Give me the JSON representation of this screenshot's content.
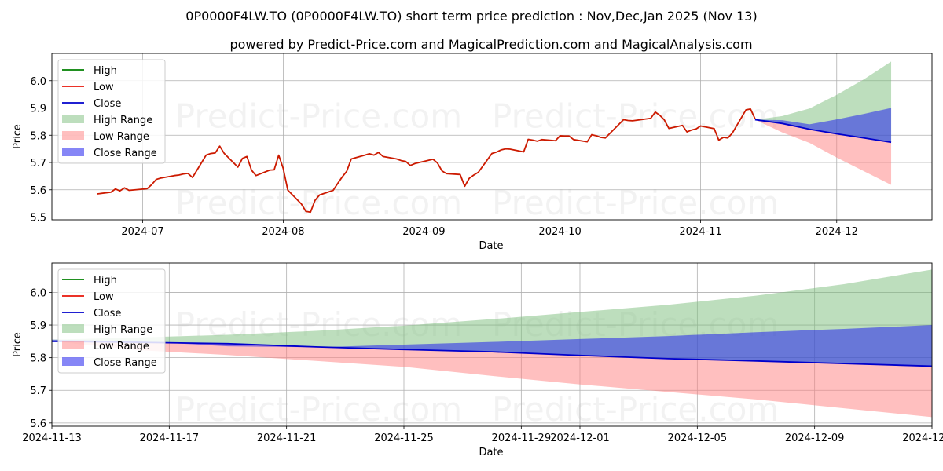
{
  "title": "0P0000F4LW.TO (0P0000F4LW.TO) short term price prediction : Nov,Dec,Jan 2025 (Nov 13)",
  "subtitle": "powered by Predict-Price.com and MagicalPrediction.com and MagicalAnalysis.com",
  "watermark": "Predict-Price.com",
  "colors": {
    "high": "#008000",
    "low": "#e8140a",
    "close": "#0000cc",
    "history": "#cc1a00",
    "high_range": "#7cbd7c",
    "low_range": "#ff8080",
    "close_range": "#2222ee"
  },
  "chart_data": [
    {
      "type": "line",
      "xlabel": "Date",
      "ylabel": "Price",
      "xlim": [
        "2024-06-11",
        "2024-12-22"
      ],
      "ylim": [
        5.49,
        6.1
      ],
      "xticks": [
        "2024-07",
        "2024-08",
        "2024-09",
        "2024-10",
        "2024-11",
        "2024-12"
      ],
      "xtick_dates": [
        "2024-07-01",
        "2024-08-01",
        "2024-09-01",
        "2024-10-01",
        "2024-11-01",
        "2024-12-01"
      ],
      "yticks": [
        "5.5",
        "5.6",
        "5.7",
        "5.8",
        "5.9",
        "6.0"
      ],
      "legend": [
        "High",
        "Low",
        "Close",
        "High Range",
        "Low Range",
        "Close Range"
      ],
      "legend_position": "upper-left",
      "grid": true,
      "history": {
        "x": [
          "2024-06-21",
          "2024-06-24",
          "2024-06-25",
          "2024-06-26",
          "2024-06-27",
          "2024-06-28",
          "2024-07-02",
          "2024-07-03",
          "2024-07-04",
          "2024-07-05",
          "2024-07-08",
          "2024-07-09",
          "2024-07-10",
          "2024-07-11",
          "2024-07-12",
          "2024-07-15",
          "2024-07-16",
          "2024-07-17",
          "2024-07-18",
          "2024-07-19",
          "2024-07-22",
          "2024-07-23",
          "2024-07-24",
          "2024-07-25",
          "2024-07-26",
          "2024-07-29",
          "2024-07-30",
          "2024-07-31",
          "2024-08-01",
          "2024-08-02",
          "2024-08-05",
          "2024-08-06",
          "2024-08-07",
          "2024-08-08",
          "2024-08-09",
          "2024-08-12",
          "2024-08-13",
          "2024-08-14",
          "2024-08-15",
          "2024-08-16",
          "2024-08-19",
          "2024-08-20",
          "2024-08-21",
          "2024-08-22",
          "2024-08-23",
          "2024-08-26",
          "2024-08-27",
          "2024-08-28",
          "2024-08-29",
          "2024-08-30",
          "2024-09-03",
          "2024-09-04",
          "2024-09-05",
          "2024-09-06",
          "2024-09-09",
          "2024-09-10",
          "2024-09-11",
          "2024-09-12",
          "2024-09-13",
          "2024-09-16",
          "2024-09-17",
          "2024-09-18",
          "2024-09-19",
          "2024-09-20",
          "2024-09-23",
          "2024-09-24",
          "2024-09-25",
          "2024-09-26",
          "2024-09-27",
          "2024-09-30",
          "2024-10-01",
          "2024-10-02",
          "2024-10-03",
          "2024-10-04",
          "2024-10-07",
          "2024-10-08",
          "2024-10-09",
          "2024-10-10",
          "2024-10-11",
          "2024-10-15",
          "2024-10-16",
          "2024-10-17",
          "2024-10-18",
          "2024-10-21",
          "2024-10-22",
          "2024-10-23",
          "2024-10-24",
          "2024-10-25",
          "2024-10-28",
          "2024-10-29",
          "2024-10-30",
          "2024-10-31",
          "2024-11-01",
          "2024-11-04",
          "2024-11-05",
          "2024-11-06",
          "2024-11-07",
          "2024-11-08",
          "2024-11-11",
          "2024-11-12",
          "2024-11-13"
        ],
        "y": [
          5.585,
          5.591,
          5.603,
          5.596,
          5.607,
          5.598,
          5.604,
          5.619,
          5.638,
          5.643,
          5.652,
          5.654,
          5.658,
          5.66,
          5.645,
          5.727,
          5.733,
          5.735,
          5.76,
          5.733,
          5.683,
          5.715,
          5.722,
          5.672,
          5.652,
          5.672,
          5.673,
          5.727,
          5.678,
          5.599,
          5.548,
          5.521,
          5.518,
          5.561,
          5.581,
          5.598,
          5.623,
          5.647,
          5.668,
          5.713,
          5.727,
          5.732,
          5.727,
          5.737,
          5.722,
          5.713,
          5.707,
          5.704,
          5.689,
          5.696,
          5.712,
          5.698,
          5.669,
          5.659,
          5.656,
          5.613,
          5.642,
          5.654,
          5.664,
          5.733,
          5.738,
          5.746,
          5.75,
          5.749,
          5.739,
          5.785,
          5.782,
          5.778,
          5.784,
          5.78,
          5.798,
          5.797,
          5.797,
          5.784,
          5.776,
          5.802,
          5.798,
          5.792,
          5.79,
          5.857,
          5.854,
          5.853,
          5.855,
          5.862,
          5.885,
          5.873,
          5.856,
          5.825,
          5.836,
          5.812,
          5.819,
          5.823,
          5.834,
          5.824,
          5.782,
          5.792,
          5.79,
          5.808,
          5.893,
          5.896,
          5.86
        ]
      },
      "forecast": {
        "x": [
          "2024-11-13",
          "2024-11-19",
          "2024-11-25",
          "2024-12-01",
          "2024-12-07",
          "2024-12-13"
        ],
        "close": [
          5.857,
          5.843,
          5.822,
          5.805,
          5.79,
          5.774
        ],
        "high": [
          5.857,
          5.87,
          5.898,
          5.948,
          6.005,
          6.07
        ],
        "low": [
          5.857,
          5.81,
          5.772,
          5.718,
          5.668,
          5.618
        ],
        "close_upper": [
          5.857,
          5.855,
          5.84,
          5.858,
          5.878,
          5.9
        ],
        "close_lower": [
          5.857,
          5.843,
          5.822,
          5.805,
          5.79,
          5.774
        ]
      }
    },
    {
      "type": "line",
      "xlabel": "Date",
      "ylabel": "Price",
      "xlim": [
        "2024-11-13",
        "2024-12-13"
      ],
      "ylim": [
        5.59,
        6.09
      ],
      "xticks": [
        "2024-11-13",
        "2024-11-17",
        "2024-11-21",
        "2024-11-25",
        "2024-11-29",
        "2024-12-01",
        "2024-12-05",
        "2024-12-09",
        "2024-12-13"
      ],
      "yticks": [
        "5.6",
        "5.7",
        "5.8",
        "5.9",
        "6.0"
      ],
      "legend": [
        "High",
        "Low",
        "Close",
        "High Range",
        "Low Range",
        "Close Range"
      ],
      "legend_position": "upper-left",
      "grid": true,
      "forecast": {
        "x": [
          "2024-11-13",
          "2024-11-16",
          "2024-11-19",
          "2024-11-22",
          "2024-11-25",
          "2024-11-28",
          "2024-12-01",
          "2024-12-04",
          "2024-12-07",
          "2024-12-10",
          "2024-12-13"
        ],
        "close": [
          5.85,
          5.847,
          5.843,
          5.833,
          5.825,
          5.818,
          5.807,
          5.797,
          5.79,
          5.782,
          5.774
        ],
        "high": [
          5.855,
          5.862,
          5.87,
          5.882,
          5.898,
          5.918,
          5.94,
          5.962,
          5.99,
          6.025,
          6.07
        ],
        "low": [
          5.85,
          5.823,
          5.808,
          5.79,
          5.772,
          5.744,
          5.718,
          5.695,
          5.672,
          5.645,
          5.618
        ],
        "close_upper": [
          5.855,
          5.85,
          5.835,
          5.832,
          5.84,
          5.848,
          5.857,
          5.866,
          5.878,
          5.888,
          5.9
        ],
        "close_lower": [
          5.85,
          5.847,
          5.843,
          5.833,
          5.825,
          5.818,
          5.807,
          5.797,
          5.79,
          5.782,
          5.774
        ]
      }
    }
  ]
}
